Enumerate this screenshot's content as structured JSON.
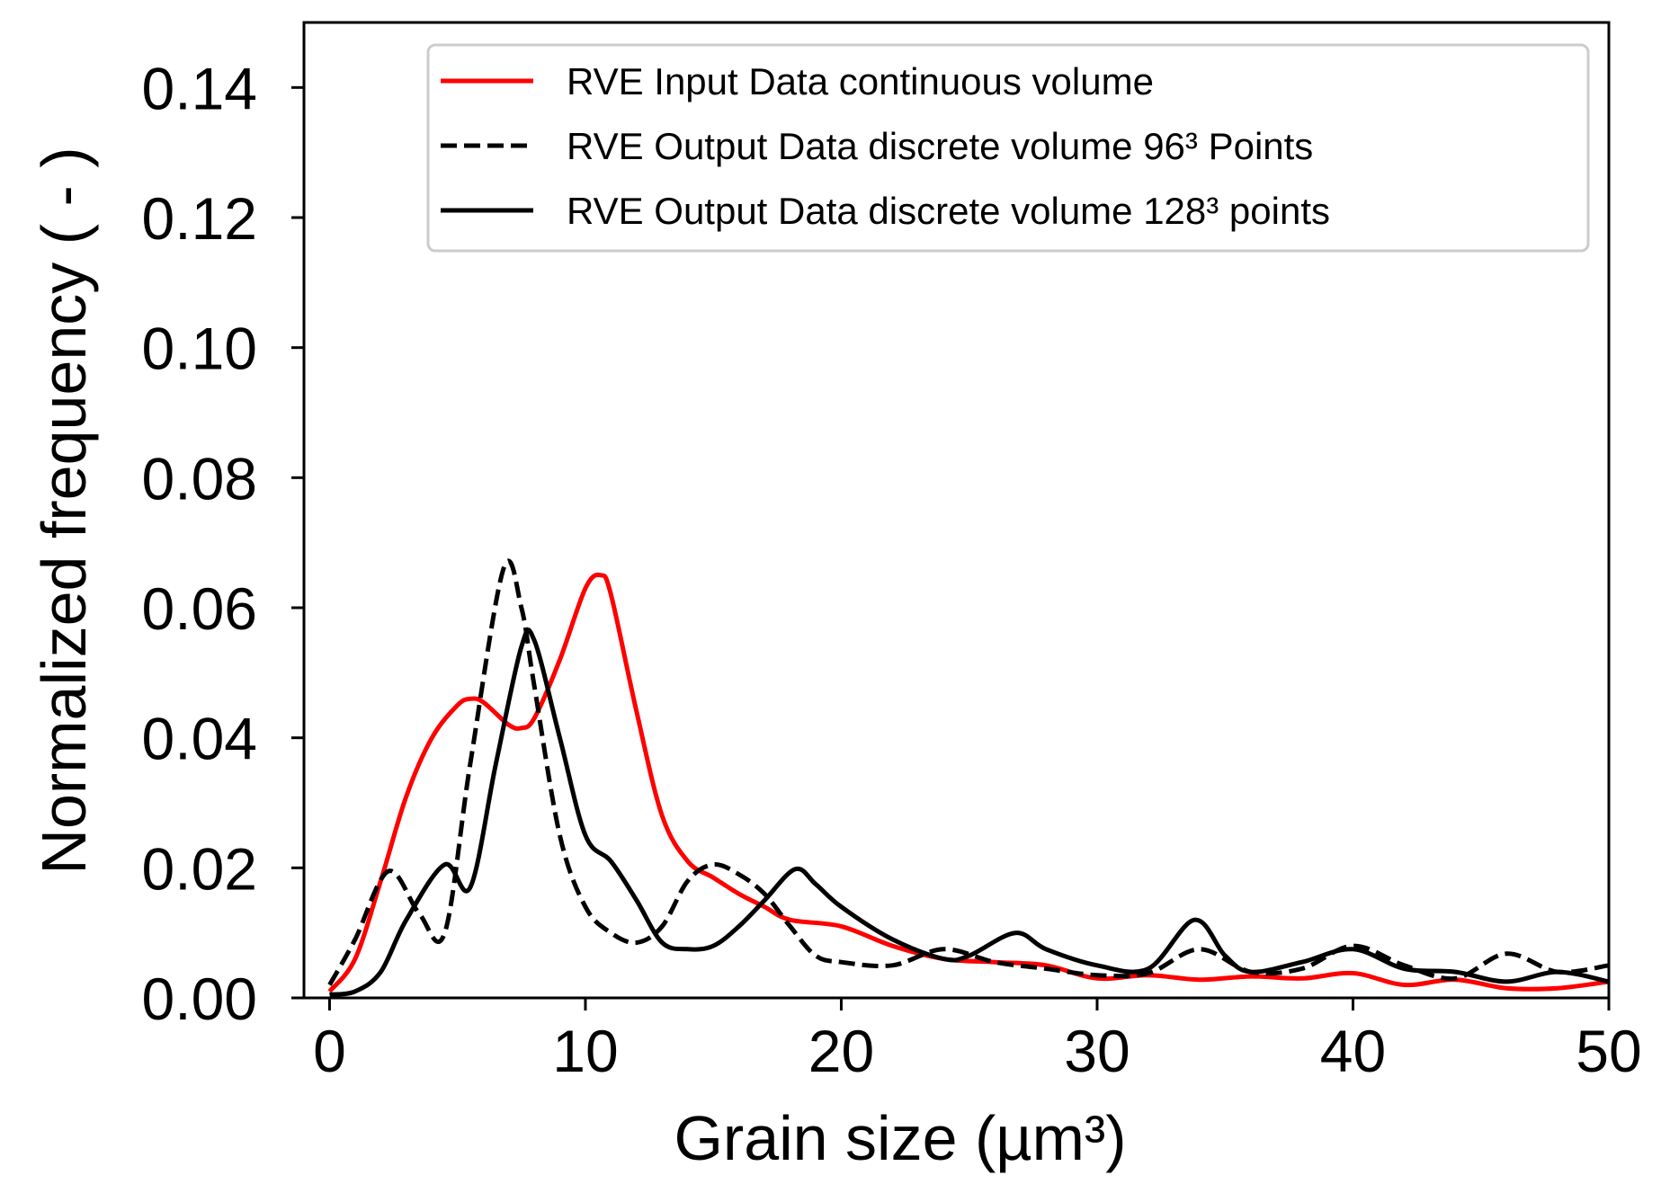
{
  "chart_data": {
    "type": "line",
    "title": "",
    "xlabel": "Grain size (µm³)",
    "ylabel": "Normalized frequency ( - )",
    "xlim": [
      -1,
      50
    ],
    "ylim": [
      0,
      0.15
    ],
    "xticks": [
      0,
      10,
      20,
      30,
      40,
      50
    ],
    "xtick_labels": [
      "0",
      "10",
      "20",
      "30",
      "40",
      "50"
    ],
    "yticks": [
      0,
      0.02,
      0.04,
      0.06,
      0.08,
      0.1,
      0.12,
      0.14
    ],
    "ytick_labels": [
      "0.00",
      "0.02",
      "0.04",
      "0.06",
      "0.08",
      "0.10",
      "0.12",
      "0.14"
    ],
    "grid": false,
    "legend_position": "top-right",
    "series": [
      {
        "name": "RVE Input Data continuous volume",
        "color": "#ff0000",
        "style": "solid",
        "x": [
          0,
          1,
          2,
          3,
          4,
          5,
          5.5,
          6,
          7,
          7.5,
          8,
          9,
          10,
          10.6,
          11,
          12,
          13,
          14,
          15,
          16,
          17,
          18,
          20,
          22,
          24,
          26,
          28,
          30,
          32,
          34,
          36,
          38,
          40,
          42,
          44,
          46,
          48,
          50
        ],
        "y": [
          0.001,
          0.006,
          0.018,
          0.031,
          0.04,
          0.045,
          0.046,
          0.0455,
          0.042,
          0.0415,
          0.043,
          0.052,
          0.063,
          0.065,
          0.062,
          0.044,
          0.028,
          0.021,
          0.0185,
          0.016,
          0.014,
          0.012,
          0.011,
          0.008,
          0.006,
          0.0055,
          0.005,
          0.003,
          0.0035,
          0.0028,
          0.0033,
          0.003,
          0.0038,
          0.002,
          0.0028,
          0.0015,
          0.0015,
          0.0025
        ]
      },
      {
        "name": "RVE Output Data discrete volume 96³ Points",
        "color": "#000000",
        "style": "dashed",
        "x": [
          0,
          1,
          2.3,
          3.5,
          4.5,
          5.5,
          6.8,
          7.5,
          8,
          9,
          10,
          11,
          12,
          13,
          14,
          15,
          16,
          17,
          18,
          19,
          20,
          22,
          24,
          26,
          28,
          30,
          32,
          34,
          36,
          38,
          40,
          42,
          44,
          46,
          48,
          50
        ],
        "y": [
          0.002,
          0.009,
          0.0195,
          0.013,
          0.01,
          0.036,
          0.066,
          0.06,
          0.048,
          0.025,
          0.014,
          0.01,
          0.0085,
          0.011,
          0.018,
          0.0205,
          0.019,
          0.016,
          0.011,
          0.0065,
          0.0055,
          0.005,
          0.0075,
          0.0055,
          0.0045,
          0.0035,
          0.0038,
          0.0075,
          0.004,
          0.0045,
          0.008,
          0.005,
          0.003,
          0.0068,
          0.004,
          0.005
        ]
      },
      {
        "name": "RVE Output Data discrete volume 128³ points",
        "color": "#000000",
        "style": "solid",
        "x": [
          0,
          1,
          2,
          3,
          4.5,
          5.5,
          6.5,
          7.5,
          8,
          9,
          10,
          11,
          12,
          13,
          14,
          15,
          16,
          17,
          18.2,
          19,
          20,
          22,
          24,
          25,
          26.8,
          28,
          30,
          32,
          33.8,
          35,
          36,
          38,
          40,
          42,
          44,
          46,
          48,
          50
        ],
        "y": [
          0.0005,
          0.001,
          0.004,
          0.012,
          0.0205,
          0.017,
          0.036,
          0.054,
          0.055,
          0.04,
          0.025,
          0.021,
          0.015,
          0.0085,
          0.0075,
          0.008,
          0.011,
          0.015,
          0.0198,
          0.0175,
          0.014,
          0.009,
          0.006,
          0.0065,
          0.01,
          0.0075,
          0.005,
          0.0045,
          0.012,
          0.0065,
          0.004,
          0.0055,
          0.0075,
          0.0045,
          0.004,
          0.0025,
          0.004,
          0.0025
        ]
      }
    ]
  }
}
